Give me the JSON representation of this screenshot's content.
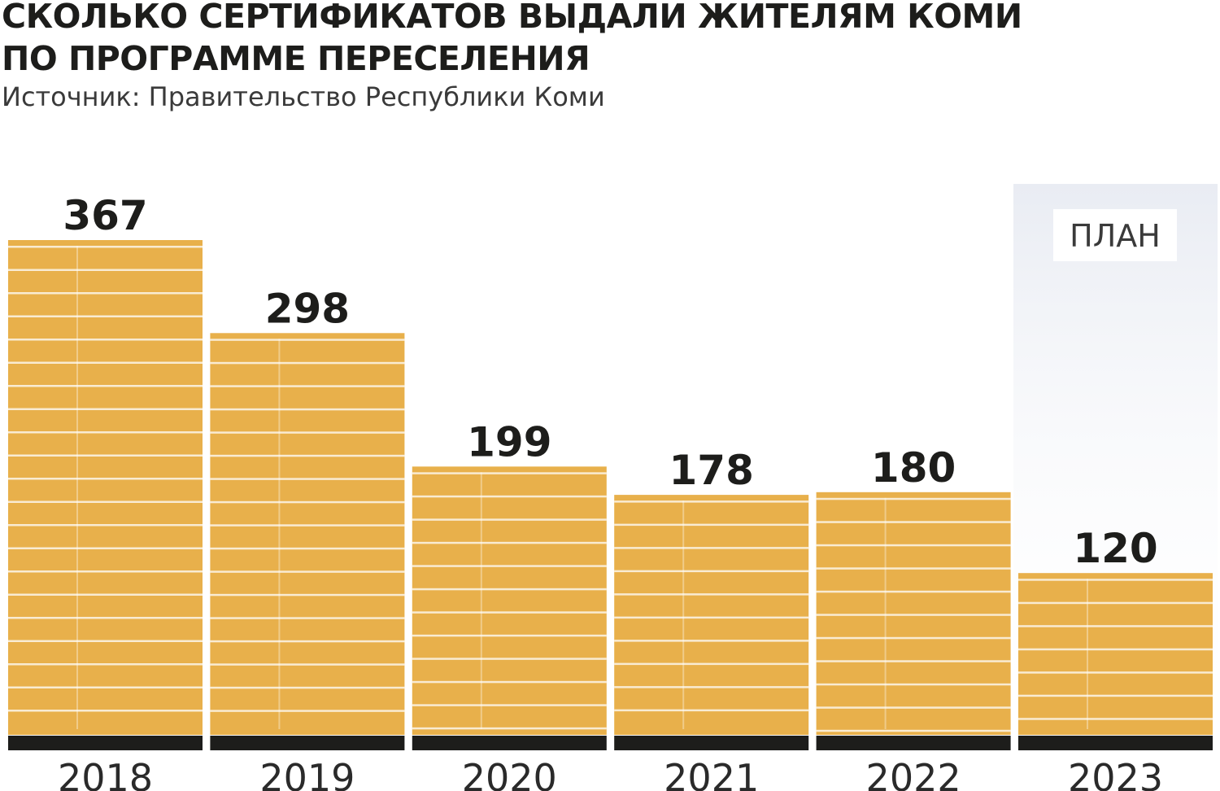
{
  "title": "СКОЛЬКО СЕРТИФИКАТОВ ВЫДАЛИ ЖИТЕЛЯМ КОМИ ПО ПРОГРАММЕ ПЕРЕСЕЛЕНИЯ",
  "source": "Источник: Правительство Республики Коми",
  "plan_label": "ПЛАН",
  "colors": {
    "bar": "#e8b04b",
    "stripe": "#ffffff",
    "baseline": "#1d1d1b",
    "plan_background": "#e9ecf3",
    "text": "#1d1d1b"
  },
  "chart_data": {
    "type": "bar",
    "title": "СКОЛЬКО СЕРТИФИКАТОВ ВЫДАЛИ ЖИТЕЛЯМ КОМИ ПО ПРОГРАММЕ ПЕРЕСЕЛЕНИЯ",
    "categories": [
      "2018",
      "2019",
      "2020",
      "2021",
      "2022",
      "2023"
    ],
    "values": [
      367,
      298,
      199,
      178,
      180,
      120
    ],
    "highlighted_category": "2023",
    "highlight_label": "ПЛАН",
    "grid": false,
    "legend": "none"
  }
}
